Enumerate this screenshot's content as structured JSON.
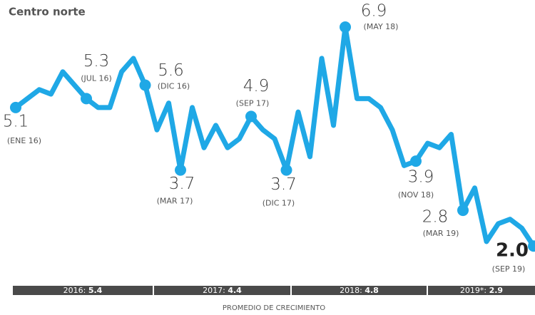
{
  "chart_data": {
    "type": "line",
    "title": "Centro norte",
    "categories": [
      "(ENE 16)",
      null,
      null,
      null,
      null,
      null,
      "(JUL 16)",
      null,
      null,
      null,
      null,
      "(DIC 16)",
      null,
      null,
      "(MAR 17)",
      null,
      null,
      null,
      null,
      null,
      "(SEP 17)",
      null,
      null,
      "(DIC 17)",
      null,
      null,
      null,
      null,
      "(MAY 18)",
      null,
      null,
      null,
      null,
      null,
      "(NOV 18)",
      null,
      null,
      null,
      "(MAR 19)",
      null,
      null,
      null,
      null,
      null,
      "(SEP 19)"
    ],
    "values": [
      5.1,
      5.3,
      5.5,
      5.4,
      5.9,
      5.6,
      5.3,
      5.1,
      5.1,
      5.9,
      6.2,
      5.6,
      4.6,
      5.2,
      3.7,
      5.1,
      4.2,
      4.7,
      4.2,
      4.4,
      4.9,
      4.6,
      4.4,
      3.7,
      5.0,
      4.0,
      6.2,
      4.7,
      6.9,
      5.3,
      5.3,
      5.1,
      4.6,
      3.8,
      3.9,
      4.3,
      4.2,
      4.5,
      2.8,
      3.3,
      2.1,
      2.5,
      2.6,
      2.4,
      2.0
    ],
    "value_labels": [
      "5.1",
      null,
      null,
      null,
      null,
      null,
      "5.3",
      null,
      null,
      null,
      null,
      "5.6",
      null,
      null,
      "3.7",
      null,
      null,
      null,
      null,
      null,
      "4.9",
      null,
      null,
      "3.7",
      null,
      null,
      null,
      null,
      "6.9",
      null,
      null,
      null,
      null,
      null,
      "3.9",
      null,
      null,
      null,
      "2.8",
      null,
      null,
      null,
      null,
      null,
      "2.0"
    ],
    "color": "#1fa8e6",
    "year_averages": [
      {
        "label": "2016:",
        "value": "5.4"
      },
      {
        "label": "2017:",
        "value": "4.4"
      },
      {
        "label": "2018:",
        "value": "4.8"
      },
      {
        "label": "2019*:",
        "value": "2.9"
      }
    ],
    "caption": "PROMEDIO DE CRECIMIENTO"
  }
}
